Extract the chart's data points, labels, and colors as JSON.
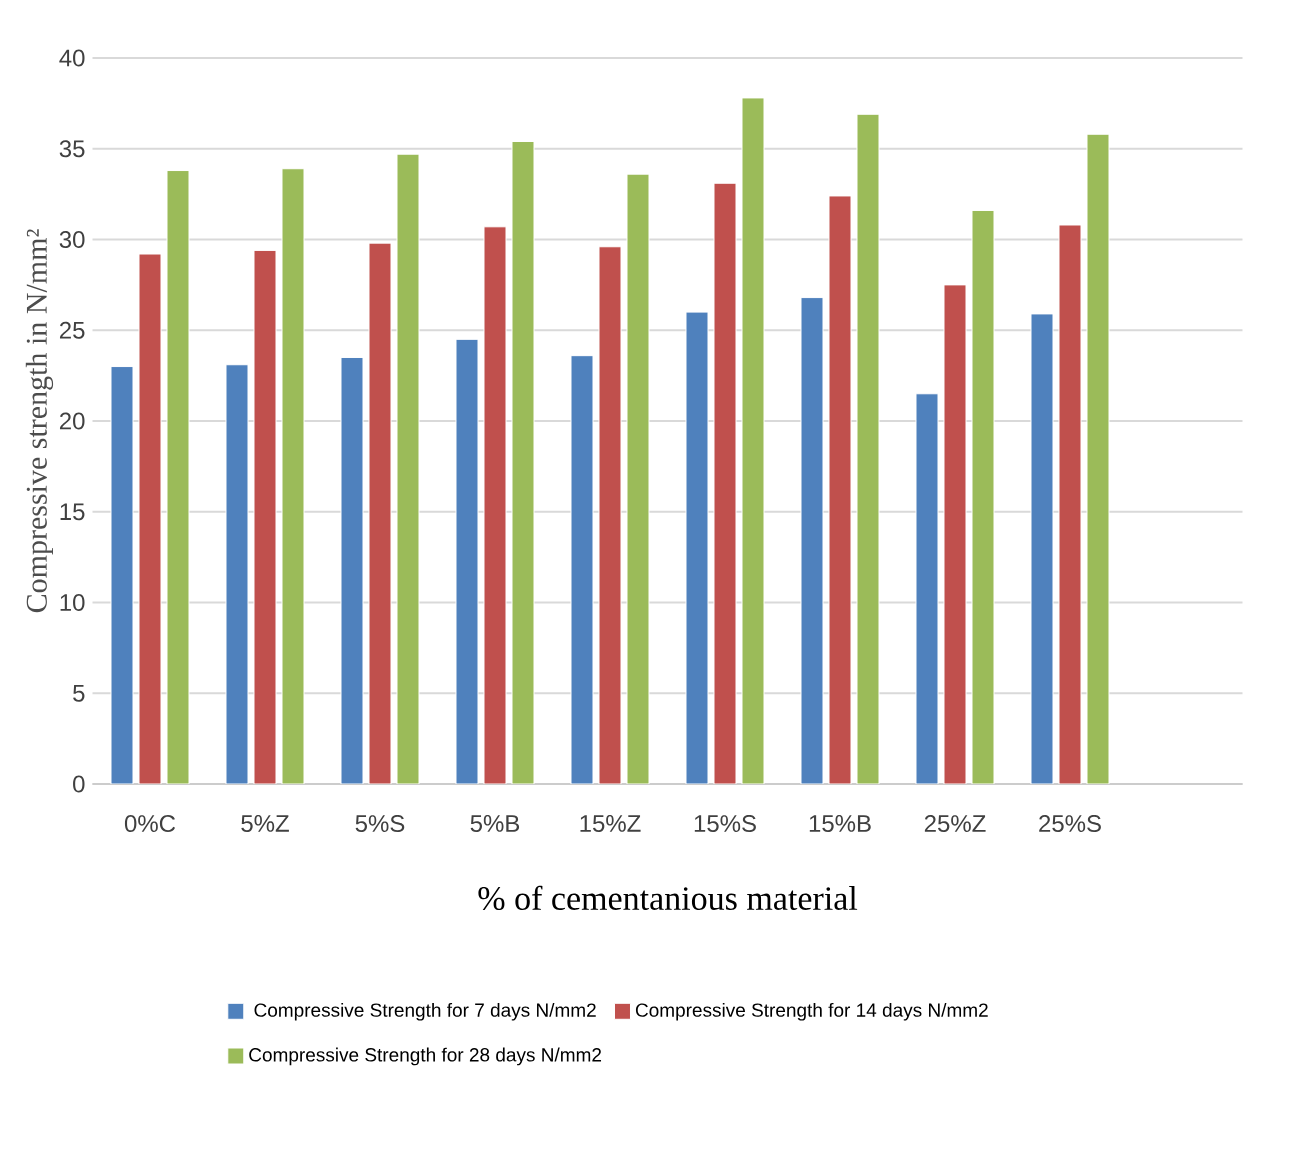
{
  "chart_data": {
    "type": "bar",
    "xlabel": "% of cementanious material",
    "ylabel": "Compressive strength in N/mm²",
    "categories": [
      "0%C",
      "5%Z",
      "5%S",
      "5%B",
      "15%Z",
      "15%S",
      "15%B",
      "25%Z",
      "25%S"
    ],
    "series": [
      {
        "name": "Compressive Strength for 7 days N/mm2",
        "color": "#4f81bd",
        "values": [
          23.0,
          23.1,
          23.5,
          24.5,
          23.6,
          26.0,
          26.8,
          21.5,
          25.9
        ]
      },
      {
        "name": "Compressive Strength for 14 days N/mm2",
        "color": "#c0504d",
        "values": [
          29.2,
          29.4,
          29.8,
          30.7,
          29.6,
          33.1,
          32.4,
          27.5,
          30.8
        ]
      },
      {
        "name": "Compressive Strength for 28 days N/mm2",
        "color": "#9bbb59",
        "values": [
          33.8,
          33.9,
          34.7,
          35.4,
          33.6,
          37.8,
          36.9,
          31.6,
          35.8
        ]
      }
    ],
    "ylim": [
      0,
      40
    ],
    "yticks": [
      0,
      5,
      10,
      15,
      20,
      25,
      30,
      35,
      40
    ],
    "grid": "y",
    "legend": "bottom"
  }
}
